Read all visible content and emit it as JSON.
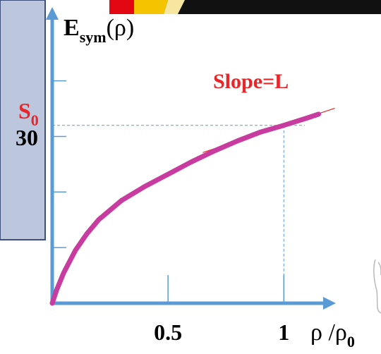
{
  "chart_data": {
    "type": "line",
    "ylabel_main": "E",
    "ylabel_sub": "sym",
    "ylabel_arg": "(ρ)",
    "xlabel_main": "ρ /ρ",
    "xlabel_sub": "0",
    "xticks": [
      {
        "value": 0.5,
        "label": "0.5"
      },
      {
        "value": 1,
        "label": "1"
      }
    ],
    "yticks": [
      10,
      20,
      30,
      40
    ],
    "ytick_label": {
      "value": 30,
      "label": "30"
    },
    "s0_main": "S",
    "s0_sub": "0",
    "slope_label": "Slope=L",
    "xlim": [
      0,
      1.45
    ],
    "ylim": [
      0,
      52
    ],
    "reference_point": {
      "x": 1.0,
      "y": 32
    },
    "series": [
      {
        "color": "#c83ca0",
        "x": [
          0.0,
          0.02,
          0.05,
          0.1,
          0.15,
          0.2,
          0.3,
          0.4,
          0.5,
          0.6,
          0.7,
          0.8,
          0.9,
          1.0,
          1.1,
          1.15
        ],
        "y": [
          0.0,
          2.5,
          5.5,
          9.5,
          12.5,
          15.0,
          18.5,
          21.0,
          23.2,
          25.4,
          27.4,
          29.2,
          30.8,
          32.0,
          33.3,
          34.0
        ]
      }
    ],
    "colors": {
      "axis": "#5b9bd5",
      "curve": "#c83ca0",
      "red_text": "#e8262a",
      "tangent": "#e8262a",
      "guide": "#5b9bd5",
      "box_fill": "#bcc6dc",
      "box_stroke": "#3f4f7a"
    }
  }
}
